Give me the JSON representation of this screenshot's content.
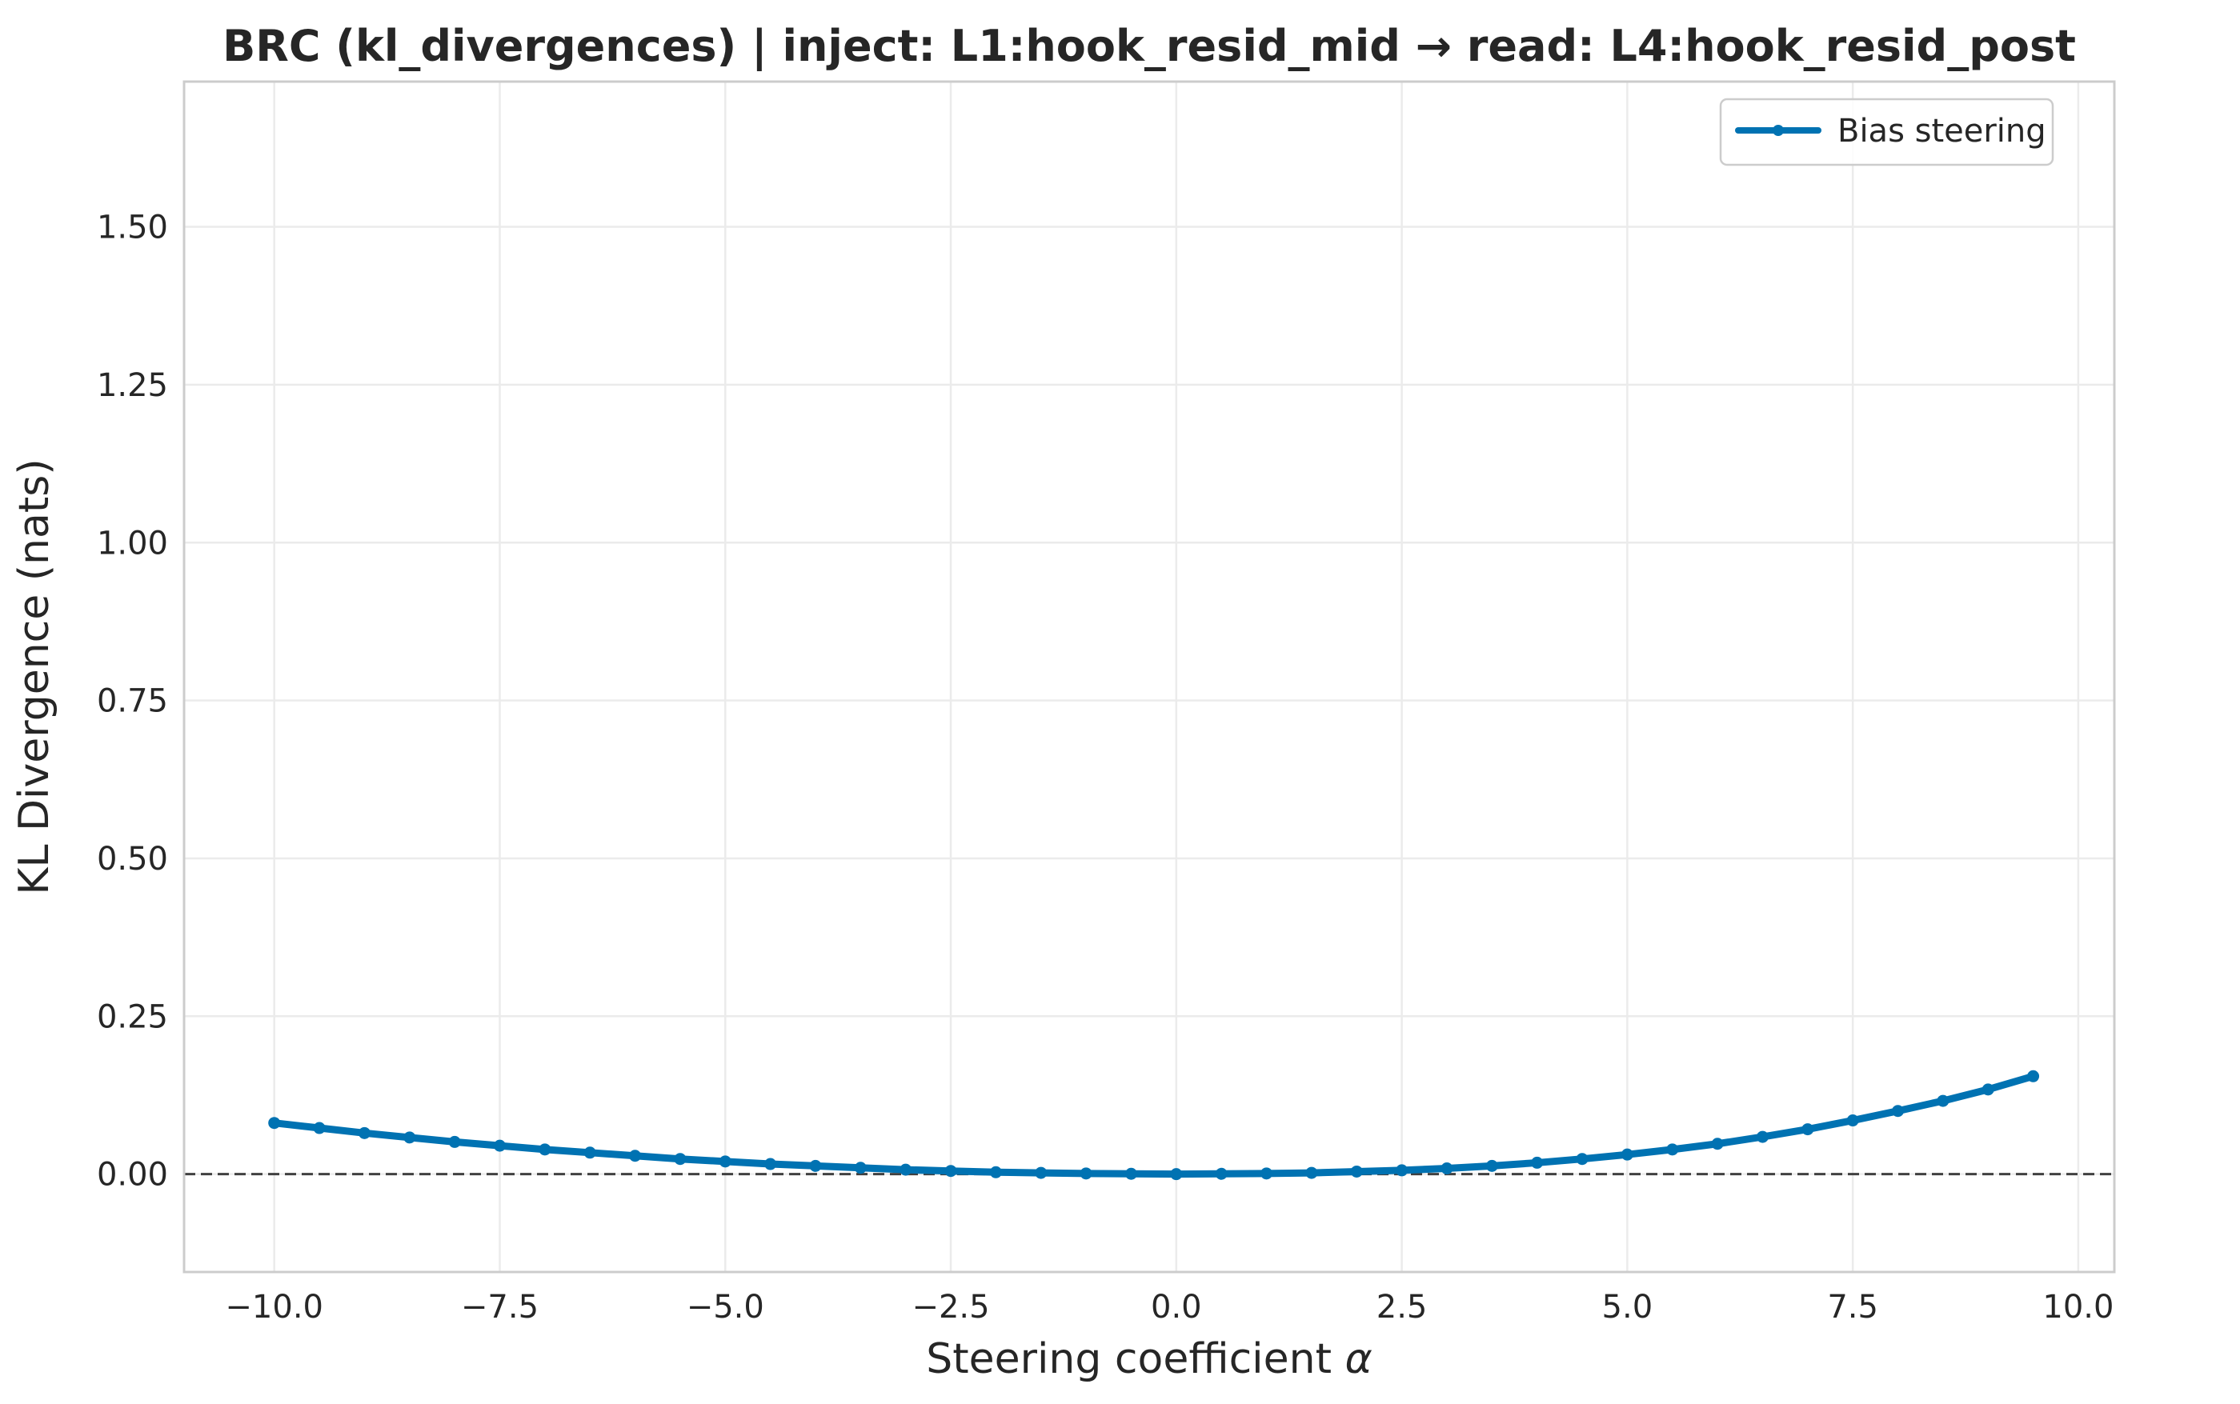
{
  "chart_data": {
    "type": "line",
    "title": "BRC (kl_divergences) | inject: L1:hook_resid_mid → read: L4:hook_resid_post",
    "xlabel_text": "Steering coefficient ",
    "xlabel_symbol": "α",
    "ylabel": "KL Divergence (nats)",
    "xlim": [
      -11.0,
      10.4
    ],
    "ylim": [
      -0.155,
      1.73
    ],
    "x_ticks": [
      -10.0,
      -7.5,
      -5.0,
      -2.5,
      0.0,
      2.5,
      5.0,
      7.5,
      10.0
    ],
    "x_tick_labels": [
      "−10.0",
      "−7.5",
      "−5.0",
      "−2.5",
      "0.0",
      "2.5",
      "5.0",
      "7.5",
      "10.0"
    ],
    "y_ticks": [
      0.0,
      0.25,
      0.5,
      0.75,
      1.0,
      1.25,
      1.5
    ],
    "y_tick_labels": [
      "0.00",
      "0.25",
      "0.50",
      "0.75",
      "1.00",
      "1.25",
      "1.50"
    ],
    "grid": true,
    "reference_line_y": 0.0,
    "legend_position": "upper right",
    "series": [
      {
        "name": "Bias steering",
        "color": "#0072b2",
        "marker": "circle",
        "x": [
          -10.0,
          -9.5,
          -9.0,
          -8.5,
          -8.0,
          -7.5,
          -7.0,
          -6.5,
          -6.0,
          -5.5,
          -5.0,
          -4.5,
          -4.0,
          -3.5,
          -3.0,
          -2.5,
          -2.0,
          -1.5,
          -1.0,
          -0.5,
          0.0,
          0.5,
          1.0,
          1.5,
          2.0,
          2.5,
          3.0,
          3.5,
          4.0,
          4.5,
          5.0,
          5.5,
          6.0,
          6.5,
          7.0,
          7.5,
          8.0,
          8.5,
          9.0,
          9.5
        ],
        "y": [
          0.081,
          0.073,
          0.065,
          0.058,
          0.051,
          0.045,
          0.039,
          0.034,
          0.029,
          0.024,
          0.02,
          0.016,
          0.013,
          0.01,
          0.007,
          0.005,
          0.003,
          0.002,
          0.001,
          0.0005,
          0.0,
          0.0005,
          0.001,
          0.002,
          0.004,
          0.006,
          0.009,
          0.013,
          0.018,
          0.024,
          0.031,
          0.039,
          0.048,
          0.059,
          0.071,
          0.085,
          0.1,
          0.116,
          0.134,
          0.155
        ]
      }
    ]
  }
}
